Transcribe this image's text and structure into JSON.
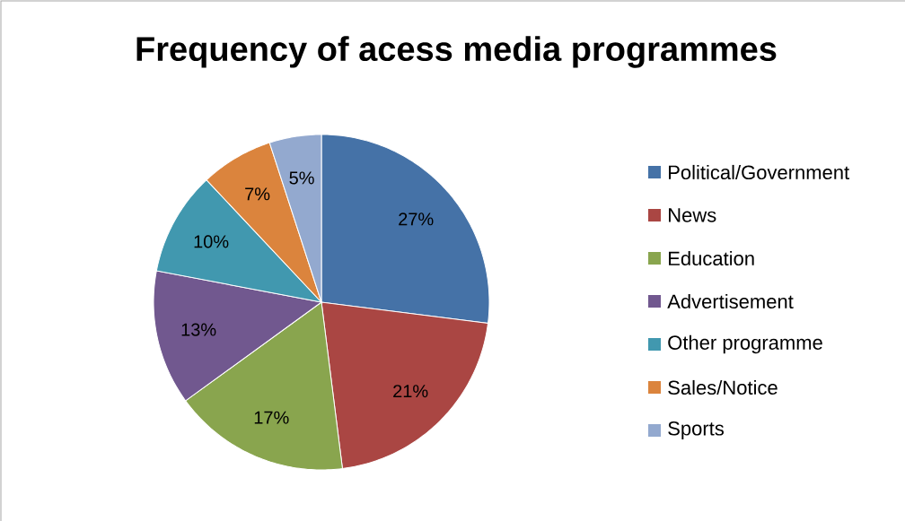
{
  "chart_data": {
    "type": "pie",
    "title": "Frequency of acess media programmes",
    "categories": [
      "Political/Government",
      "News",
      "Education",
      "Advertisement",
      "Other programme",
      "Sales/Notice",
      "Sports"
    ],
    "values": [
      27,
      21,
      17,
      13,
      10,
      7,
      5
    ],
    "value_labels": [
      "27%",
      "21%",
      "17%",
      "13%",
      "10%",
      "7%",
      "5%"
    ],
    "colors": [
      "#4572a7",
      "#aa4643",
      "#89a54e",
      "#71588f",
      "#4198af",
      "#db843d",
      "#93a9cf"
    ],
    "legend": "right"
  }
}
